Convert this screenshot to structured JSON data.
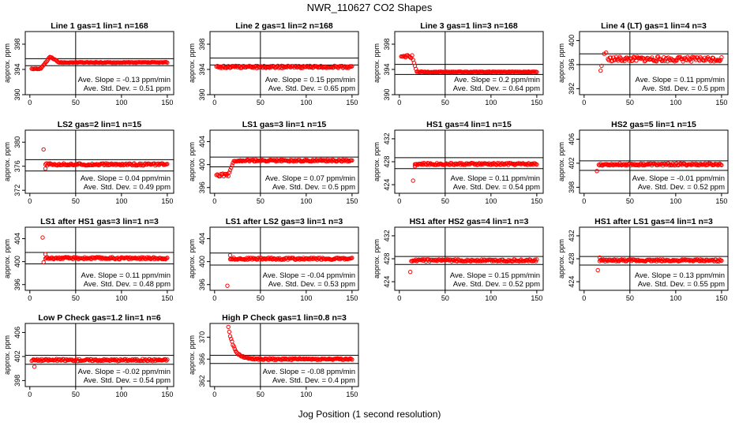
{
  "page": {
    "title": "NWR_110627  CO2 Shapes",
    "xlabel": "Jog Position (1 second resolution)"
  },
  "chart_data": [
    {
      "type": "scatter",
      "title": "Line 1 gas=1 lin=1 n=168",
      "ylabel": "approx. ppm",
      "xlim": [
        -5,
        157
      ],
      "ylim": [
        390,
        400
      ],
      "yticks": [
        390,
        394,
        398
      ],
      "xticks": [
        0,
        50,
        100,
        150
      ],
      "hlines": [
        395.7,
        394.6
      ],
      "vline": 50,
      "shape": {
        "kind": "bump",
        "start": 2,
        "base": 394.1,
        "level": 395.1,
        "peak": 396.0,
        "peak_at": 22
      },
      "slope": "Ave. Slope = -0.13  ppm/min",
      "stddev": "Ave. Std. Dev. = 0.51  ppm"
    },
    {
      "type": "scatter",
      "title": "Line 2 gas=1 lin=2 n=168",
      "ylabel": "approx. ppm",
      "xlim": [
        -5,
        157
      ],
      "ylim": [
        390,
        400
      ],
      "yticks": [
        390,
        394,
        398
      ],
      "xticks": [
        0,
        50,
        100,
        150
      ],
      "hlines": [
        395.8,
        394.7
      ],
      "vline": 50,
      "shape": {
        "kind": "flat",
        "start": 2,
        "level": 394.4
      },
      "slope": "Ave. Slope = 0.15  ppm/min",
      "stddev": "Ave. Std. Dev. = 0.65  ppm"
    },
    {
      "type": "scatter",
      "title": "Line 3 gas=1 lin=3 n=168",
      "ylabel": "approx. ppm",
      "xlim": [
        -5,
        157
      ],
      "ylim": [
        390,
        400
      ],
      "yticks": [
        390,
        394,
        398
      ],
      "xticks": [
        0,
        50,
        100,
        150
      ],
      "hlines": [
        394.8,
        393.2
      ],
      "vline": 50,
      "shape": {
        "kind": "drop",
        "start": 2,
        "peak": 396.0,
        "peak_until": 14,
        "level": 393.6
      },
      "slope": "Ave. Slope = 0.2  ppm/min",
      "stddev": "Ave. Std. Dev. = 0.64  ppm"
    },
    {
      "type": "scatter",
      "title": "Line 4 (LT) gas=1 lin=4 n=3",
      "ylabel": "approx. ppm",
      "xlim": [
        -5,
        157
      ],
      "ylim": [
        391,
        401.5
      ],
      "yticks": [
        392,
        396,
        400
      ],
      "xticks": [
        0,
        50,
        100,
        150
      ],
      "hlines": [
        397.8,
        396.0
      ],
      "vline": 50,
      "shape": {
        "kind": "spike",
        "start": 18,
        "level": 396.9,
        "outliers": [
          [
            18,
            395.0
          ],
          [
            19,
            395.8
          ],
          [
            22,
            397.8
          ],
          [
            24,
            398.0
          ]
        ]
      },
      "slope": "Ave. Slope = 0.11  ppm/min",
      "stddev": "Ave. Std. Dev. = 0.5  ppm"
    },
    {
      "type": "scatter",
      "title": "LS2 gas=2 lin=1 n=15",
      "ylabel": "approx. ppm",
      "xlim": [
        -5,
        157
      ],
      "ylim": [
        371.5,
        382
      ],
      "yticks": [
        372,
        376,
        380
      ],
      "xticks": [
        0,
        50,
        100,
        150
      ],
      "hlines": [
        377.1,
        375.2
      ],
      "vline": 50,
      "shape": {
        "kind": "flat",
        "start": 17,
        "level": 376.3,
        "outliers": [
          [
            15,
            378.8
          ],
          [
            17,
            375.6
          ]
        ]
      },
      "slope": "Ave. Slope = 0.04  ppm/min",
      "stddev": "Ave. Std. Dev. = 0.49  ppm"
    },
    {
      "type": "scatter",
      "title": "LS1 gas=3 lin=1 n=15",
      "ylabel": "approx. ppm",
      "xlim": [
        -5,
        157
      ],
      "ylim": [
        395,
        406
      ],
      "yticks": [
        396,
        400,
        404
      ],
      "xticks": [
        0,
        50,
        100,
        150
      ],
      "hlines": [
        401.3,
        399.6
      ],
      "vline": 50,
      "shape": {
        "kind": "rise",
        "start": 2,
        "base": 398.2,
        "base_until": 15,
        "level": 400.7
      },
      "slope": "Ave. Slope = 0.07  ppm/min",
      "stddev": "Ave. Std. Dev. = 0.5  ppm"
    },
    {
      "type": "scatter",
      "title": "HS1 gas=4 lin=1 n=15",
      "ylabel": "approx. ppm",
      "xlim": [
        -5,
        157
      ],
      "ylim": [
        422.5,
        433.5
      ],
      "yticks": [
        424,
        428,
        432
      ],
      "xticks": [
        0,
        50,
        100,
        150
      ],
      "hlines": [
        428.7,
        426.8
      ],
      "vline": 50,
      "shape": {
        "kind": "flat",
        "start": 17,
        "level": 427.6,
        "outliers": [
          [
            15,
            424.7
          ],
          [
            17,
            427.2
          ]
        ]
      },
      "slope": "Ave. Slope = 0.11  ppm/min",
      "stddev": "Ave. Std. Dev. = 0.54  ppm"
    },
    {
      "type": "scatter",
      "title": "HS2 gas=5 lin=1 n=15",
      "ylabel": "approx. ppm",
      "xlim": [
        -5,
        157
      ],
      "ylim": [
        397,
        407.5
      ],
      "yticks": [
        398,
        402,
        406
      ],
      "xticks": [
        0,
        50,
        100,
        150
      ],
      "hlines": [
        402.4,
        400.8
      ],
      "vline": 50,
      "shape": {
        "kind": "flat",
        "start": 16,
        "level": 401.8,
        "outliers": [
          [
            14,
            400.7
          ]
        ]
      },
      "slope": "Ave. Slope = -0.01  ppm/min",
      "stddev": "Ave. Std. Dev. = 0.52  ppm"
    },
    {
      "type": "scatter",
      "title": "LS1 after HS1 gas=3 lin=1 n=3",
      "ylabel": "approx. ppm",
      "xlim": [
        -5,
        157
      ],
      "ylim": [
        395,
        406
      ],
      "yticks": [
        396,
        400,
        404
      ],
      "xticks": [
        0,
        50,
        100,
        150
      ],
      "hlines": [
        401.6,
        399.6
      ],
      "vline": 50,
      "shape": {
        "kind": "flat",
        "start": 17,
        "level": 400.6,
        "outliers": [
          [
            14,
            404.2
          ],
          [
            15,
            399.9
          ],
          [
            17,
            401.3
          ]
        ]
      },
      "slope": "Ave. Slope = 0.11  ppm/min",
      "stddev": "Ave. Std. Dev. = 0.48  ppm"
    },
    {
      "type": "scatter",
      "title": "LS1 after LS2 gas=3 lin=1 n=3",
      "ylabel": "approx. ppm",
      "xlim": [
        -5,
        157
      ],
      "ylim": [
        395,
        406
      ],
      "yticks": [
        396,
        400,
        404
      ],
      "xticks": [
        0,
        50,
        100,
        150
      ],
      "hlines": [
        401.5,
        399.4
      ],
      "vline": 50,
      "shape": {
        "kind": "flat",
        "start": 17,
        "level": 400.5,
        "outliers": [
          [
            14,
            395.8
          ],
          [
            17,
            401.1
          ]
        ]
      },
      "slope": "Ave. Slope = -0.04  ppm/min",
      "stddev": "Ave. Std. Dev. = 0.53  ppm"
    },
    {
      "type": "scatter",
      "title": "HS1 after HS2 gas=4 lin=1 n=3",
      "ylabel": "approx. ppm",
      "xlim": [
        -5,
        157
      ],
      "ylim": [
        422.5,
        433.5
      ],
      "yticks": [
        424,
        428,
        432
      ],
      "xticks": [
        0,
        50,
        100,
        150
      ],
      "hlines": [
        428.4,
        427.0
      ],
      "vline": 50,
      "shape": {
        "kind": "flat",
        "start": 13,
        "level": 427.7,
        "outliers": [
          [
            12,
            425.7
          ]
        ]
      },
      "slope": "Ave. Slope = 0.15  ppm/min",
      "stddev": "Ave. Std. Dev. = 0.52  ppm"
    },
    {
      "type": "scatter",
      "title": "HS1 after LS1 gas=4 lin=1 n=3",
      "ylabel": "approx. ppm",
      "xlim": [
        -5,
        157
      ],
      "ylim": [
        422.5,
        433.5
      ],
      "yticks": [
        424,
        428,
        432
      ],
      "xticks": [
        0,
        50,
        100,
        150
      ],
      "hlines": [
        428.4,
        426.9
      ],
      "vline": 50,
      "shape": {
        "kind": "flat",
        "start": 17,
        "level": 427.7,
        "outliers": [
          [
            15,
            426.0
          ],
          [
            17,
            428.2
          ]
        ]
      },
      "slope": "Ave. Slope = 0.13  ppm/min",
      "stddev": "Ave. Std. Dev. = 0.55  ppm"
    },
    {
      "type": "scatter",
      "title": "Low P Check gas=1.2 lin=1 n=6",
      "ylabel": "approx. ppm",
      "xlim": [
        -5,
        157
      ],
      "ylim": [
        397,
        407.5
      ],
      "yticks": [
        398,
        402,
        406
      ],
      "xticks": [
        0,
        50,
        100,
        150
      ],
      "hlines": [
        402.2,
        400.7
      ],
      "vline": 50,
      "shape": {
        "kind": "flat",
        "start": 2,
        "level": 401.4,
        "outliers": [
          [
            5,
            400.3
          ]
        ]
      },
      "slope": "Ave. Slope = -0.02  ppm/min",
      "stddev": "Ave. Std. Dev. = 0.54  ppm"
    },
    {
      "type": "scatter",
      "title": "High P Check gas=1 lin=0.8 n=3",
      "ylabel": "approx. ppm",
      "xlim": [
        -5,
        157
      ],
      "ylim": [
        361,
        372.5
      ],
      "yticks": [
        362,
        366,
        370
      ],
      "xticks": [
        0,
        50,
        100,
        150
      ],
      "hlines": [
        366.7,
        365.2
      ],
      "vline": 50,
      "shape": {
        "kind": "decay",
        "start": 15,
        "peak": 372.0,
        "level": 366.0
      },
      "slope": "Ave. Slope = -0.08  ppm/min",
      "stddev": "Ave. Std. Dev. = 0.4  ppm"
    }
  ],
  "colors": {
    "points": "#ff0000",
    "axes": "#000000",
    "background": "#ffffff"
  }
}
